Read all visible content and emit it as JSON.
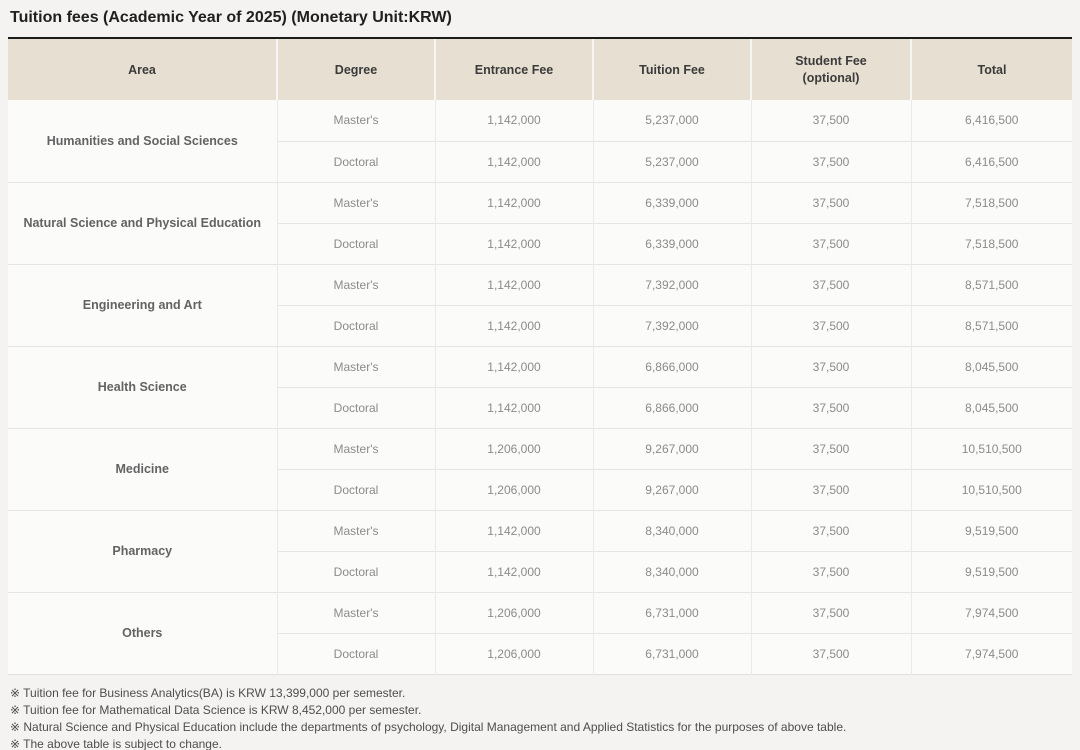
{
  "title": "Tuition fees (Academic Year of 2025) (Monetary Unit:KRW)",
  "table": {
    "columns": [
      {
        "label": "Area"
      },
      {
        "label": "Degree"
      },
      {
        "label": "Entrance Fee"
      },
      {
        "label": "Tuition Fee"
      },
      {
        "label": "Student Fee",
        "sublabel": "(optional)"
      },
      {
        "label": "Total"
      }
    ],
    "areas": [
      {
        "area": "Humanities and Social Sciences",
        "rows": [
          {
            "degree": "Master's",
            "entrance_fee": "1,142,000",
            "tuition_fee": "5,237,000",
            "student_fee": "37,500",
            "total": "6,416,500"
          },
          {
            "degree": "Doctoral",
            "entrance_fee": "1,142,000",
            "tuition_fee": "5,237,000",
            "student_fee": "37,500",
            "total": "6,416,500"
          }
        ]
      },
      {
        "area": "Natural Science and Physical Education",
        "rows": [
          {
            "degree": "Master's",
            "entrance_fee": "1,142,000",
            "tuition_fee": "6,339,000",
            "student_fee": "37,500",
            "total": "7,518,500"
          },
          {
            "degree": "Doctoral",
            "entrance_fee": "1,142,000",
            "tuition_fee": "6,339,000",
            "student_fee": "37,500",
            "total": "7,518,500"
          }
        ]
      },
      {
        "area": "Engineering and Art",
        "rows": [
          {
            "degree": "Master's",
            "entrance_fee": "1,142,000",
            "tuition_fee": "7,392,000",
            "student_fee": "37,500",
            "total": "8,571,500"
          },
          {
            "degree": "Doctoral",
            "entrance_fee": "1,142,000",
            "tuition_fee": "7,392,000",
            "student_fee": "37,500",
            "total": "8,571,500"
          }
        ]
      },
      {
        "area": "Health Science",
        "rows": [
          {
            "degree": "Master's",
            "entrance_fee": "1,142,000",
            "tuition_fee": "6,866,000",
            "student_fee": "37,500",
            "total": "8,045,500"
          },
          {
            "degree": "Doctoral",
            "entrance_fee": "1,142,000",
            "tuition_fee": "6,866,000",
            "student_fee": "37,500",
            "total": "8,045,500"
          }
        ]
      },
      {
        "area": "Medicine",
        "rows": [
          {
            "degree": "Master's",
            "entrance_fee": "1,206,000",
            "tuition_fee": "9,267,000",
            "student_fee": "37,500",
            "total": "10,510,500"
          },
          {
            "degree": "Doctoral",
            "entrance_fee": "1,206,000",
            "tuition_fee": "9,267,000",
            "student_fee": "37,500",
            "total": "10,510,500"
          }
        ]
      },
      {
        "area": "Pharmacy",
        "rows": [
          {
            "degree": "Master's",
            "entrance_fee": "1,142,000",
            "tuition_fee": "8,340,000",
            "student_fee": "37,500",
            "total": "9,519,500"
          },
          {
            "degree": "Doctoral",
            "entrance_fee": "1,142,000",
            "tuition_fee": "8,340,000",
            "student_fee": "37,500",
            "total": "9,519,500"
          }
        ]
      },
      {
        "area": "Others",
        "rows": [
          {
            "degree": "Master's",
            "entrance_fee": "1,206,000",
            "tuition_fee": "6,731,000",
            "student_fee": "37,500",
            "total": "7,974,500"
          },
          {
            "degree": "Doctoral",
            "entrance_fee": "1,206,000",
            "tuition_fee": "6,731,000",
            "student_fee": "37,500",
            "total": "7,974,500"
          }
        ]
      }
    ]
  },
  "footnotes": [
    "※ Tuition fee for Business Analytics(BA) is KRW 13,399,000 per semester.",
    "※ Tuition fee for Mathematical Data Science is KRW 8,452,000 per semester.",
    "※ Natural Science and Physical Education include the departments of psychology, Digital Management and Applied Statistics for the purposes of above table.",
    "※ The above table is subject to change."
  ],
  "colors": {
    "page_bg": "#f4f3f1",
    "header_bg": "#e7e0d2",
    "table_top_border": "#1c1c1c",
    "header_text": "#3b3b3b",
    "area_text": "#636363",
    "cell_text": "#8b8b8b",
    "footnote_text": "#4e4e4e"
  }
}
